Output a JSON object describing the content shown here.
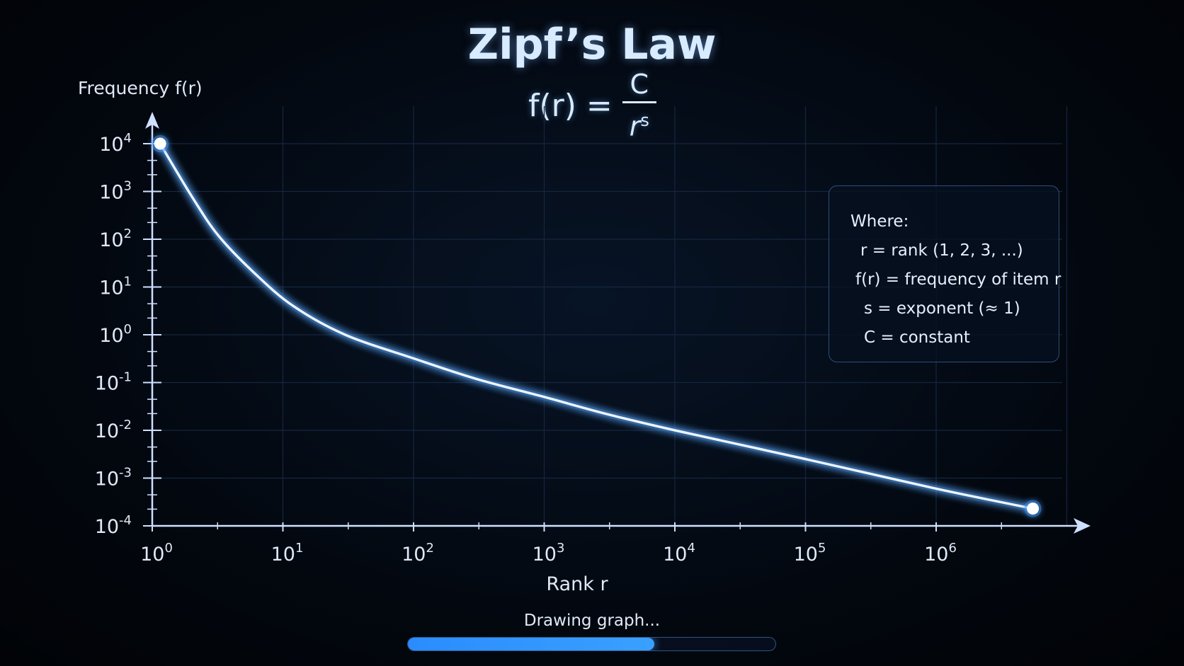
{
  "chart_data": {
    "type": "line",
    "title": "Zipf’s Law",
    "formula": {
      "lhs": "f(r) =",
      "numerator": "C",
      "denominator_base": "r",
      "denominator_exp": "s"
    },
    "xlabel": "Rank r",
    "ylabel": "Frequency f(r)",
    "x_scale": "log",
    "y_scale": "log",
    "xlim": [
      1,
      10000000
    ],
    "ylim": [
      0.0001,
      10000
    ],
    "x_ticks": [
      {
        "value": 1,
        "base": "10",
        "exp": "0"
      },
      {
        "value": 10,
        "base": "10",
        "exp": "1"
      },
      {
        "value": 100,
        "base": "10",
        "exp": "2"
      },
      {
        "value": 1000,
        "base": "10",
        "exp": "3"
      },
      {
        "value": 10000,
        "base": "10",
        "exp": "4"
      },
      {
        "value": 100000,
        "base": "10",
        "exp": "5"
      },
      {
        "value": 1000000,
        "base": "10",
        "exp": "6"
      }
    ],
    "y_ticks": [
      {
        "value": 10000,
        "base": "10",
        "exp": "4"
      },
      {
        "value": 1000,
        "base": "10",
        "exp": "3"
      },
      {
        "value": 100,
        "base": "10",
        "exp": "2"
      },
      {
        "value": 10,
        "base": "10",
        "exp": "1"
      },
      {
        "value": 1,
        "base": "10",
        "exp": "0"
      },
      {
        "value": 0.1,
        "base": "10",
        "exp": "-1"
      },
      {
        "value": 0.01,
        "base": "10",
        "exp": "-2"
      },
      {
        "value": 0.001,
        "base": "10",
        "exp": "-3"
      },
      {
        "value": 0.0001,
        "base": "10",
        "exp": "-4"
      }
    ],
    "grid": true,
    "series": [
      {
        "color": "#5aa8ff",
        "points": [
          {
            "x": 1.15,
            "y": 10000
          },
          {
            "x": 2,
            "y": 800
          },
          {
            "x": 3.2,
            "y": 120
          },
          {
            "x": 6,
            "y": 20
          },
          {
            "x": 12,
            "y": 4
          },
          {
            "x": 30,
            "y": 1
          },
          {
            "x": 100,
            "y": 0.32
          },
          {
            "x": 300,
            "y": 0.12
          },
          {
            "x": 1000,
            "y": 0.05
          },
          {
            "x": 3000,
            "y": 0.022
          },
          {
            "x": 10000,
            "y": 0.01
          },
          {
            "x": 100000,
            "y": 0.0025
          },
          {
            "x": 1000000,
            "y": 0.0006
          },
          {
            "x": 5500000,
            "y": 0.00023
          }
        ]
      }
    ],
    "endpoints": [
      {
        "x": 1.15,
        "y": 10000
      },
      {
        "x": 5500000,
        "y": 0.00023
      }
    ]
  },
  "legend": {
    "heading": "Where:",
    "lines": [
      "r = rank (1, 2, 3, ...)",
      "f(r) = frequency of item r",
      "s = exponent (≈ 1)",
      "C = constant"
    ]
  },
  "status": {
    "label": "Drawing graph...",
    "progress": 0.67
  },
  "colors": {
    "accent": "#3aa0ff",
    "axis": "#cfe0ff",
    "grid": "#16263f"
  }
}
